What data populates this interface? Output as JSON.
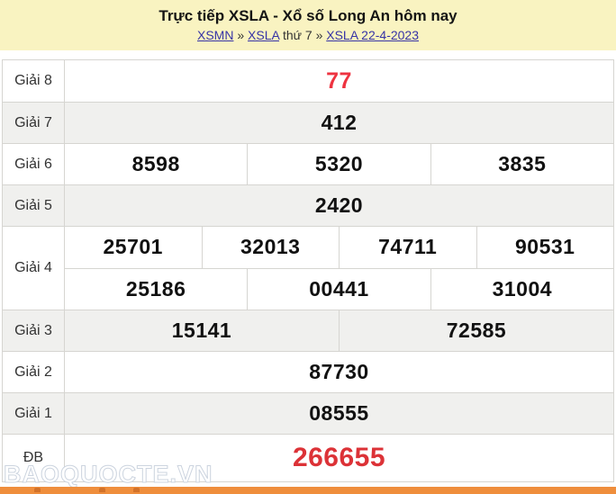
{
  "header": {
    "title": "Trực tiếp XSLA - Xổ số Long An hôm nay",
    "breadcrumb": {
      "xsmn": "XSMN",
      "sep": "»",
      "xsla": "XSLA",
      "thu": "thứ 7",
      "sep2": "»",
      "date": "XSLA 22-4-2023"
    }
  },
  "table": {
    "rows": [
      {
        "label": "Giải 8",
        "values": [
          "77"
        ]
      },
      {
        "label": "Giải 7",
        "values": [
          "412"
        ]
      },
      {
        "label": "Giải 6",
        "values": [
          "8598",
          "5320",
          "3835"
        ]
      },
      {
        "label": "Giải 5",
        "values": [
          "2420"
        ]
      },
      {
        "label": "Giải 4",
        "values_line1": [
          "25701",
          "32013",
          "74711",
          "90531"
        ],
        "values_line2": [
          "25186",
          "00441",
          "31004"
        ]
      },
      {
        "label": "Giải 3",
        "values": [
          "15141",
          "72585"
        ]
      },
      {
        "label": "Giải 2",
        "values": [
          "87730"
        ]
      },
      {
        "label": "Giải 1",
        "values": [
          "08555"
        ]
      },
      {
        "label": "ĐB",
        "values": [
          "266655"
        ]
      }
    ]
  },
  "watermark": "BAOQUOCTE.VN",
  "colors": {
    "header_bg": "#f9f3c1",
    "link": "#3734a6",
    "highlight_red": "#ee3340",
    "special_red": "#dc3237",
    "row_alt": "#f0f0ee",
    "footer_orange": "#ef8e3c"
  }
}
